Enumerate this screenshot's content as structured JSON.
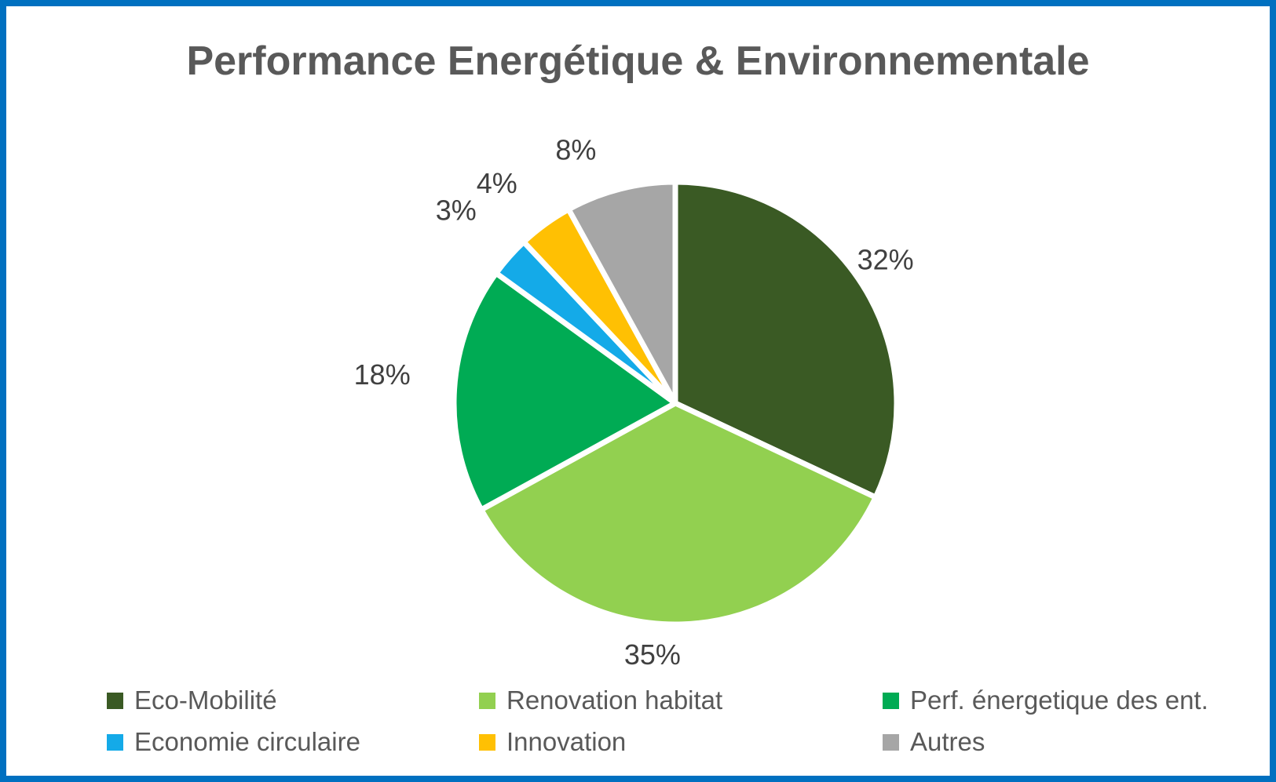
{
  "title": "Performance Energétique & Environnementale",
  "frame": {
    "border_color": "#0070c0",
    "background": "#ffffff"
  },
  "chart_data": {
    "type": "pie",
    "title": "Performance Energétique & Environnementale",
    "unit": "%",
    "start_angle_deg": 0,
    "direction": "clockwise",
    "data_labels": "percent-outside",
    "legend_position": "bottom",
    "series": [
      {
        "name": "Eco-Mobilité",
        "value": 32,
        "label": "32%",
        "color": "#3a5a24"
      },
      {
        "name": "Renovation habitat",
        "value": 35,
        "label": "35%",
        "color": "#92d050"
      },
      {
        "name": "Perf. énergetique des ent.",
        "value": 18,
        "label": "18%",
        "color": "#00ab54"
      },
      {
        "name": "Economie circulaire",
        "value": 3,
        "label": "3%",
        "color": "#14aae8"
      },
      {
        "name": "Innovation",
        "value": 4,
        "label": "4%",
        "color": "#ffc003"
      },
      {
        "name": "Autres",
        "value": 8,
        "label": "8%",
        "color": "#a6a6a6"
      }
    ],
    "legend_rows": [
      [
        "Eco-Mobilité",
        "Renovation habitat",
        "Perf. énergetique des ent."
      ],
      [
        "Economie circulaire",
        "Innovation",
        "Autres"
      ]
    ]
  }
}
